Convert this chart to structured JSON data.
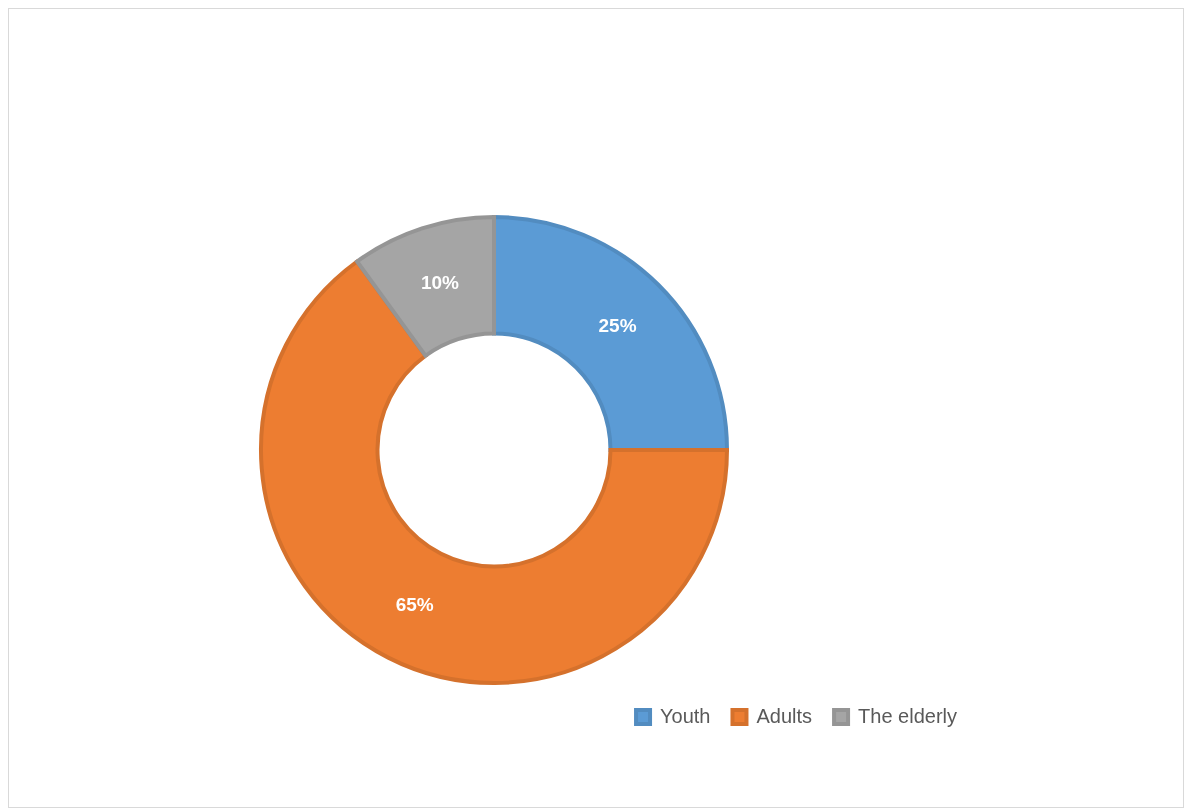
{
  "chart_data": {
    "type": "donut",
    "categories": [
      "Youth",
      "Adults",
      "The elderly"
    ],
    "values": [
      25,
      65,
      10
    ],
    "colors": [
      "#5b9bd5",
      "#ed7d31",
      "#a5a5a5"
    ],
    "value_labels": [
      "25%",
      "65%",
      "10%"
    ],
    "legend": "bottom right"
  }
}
